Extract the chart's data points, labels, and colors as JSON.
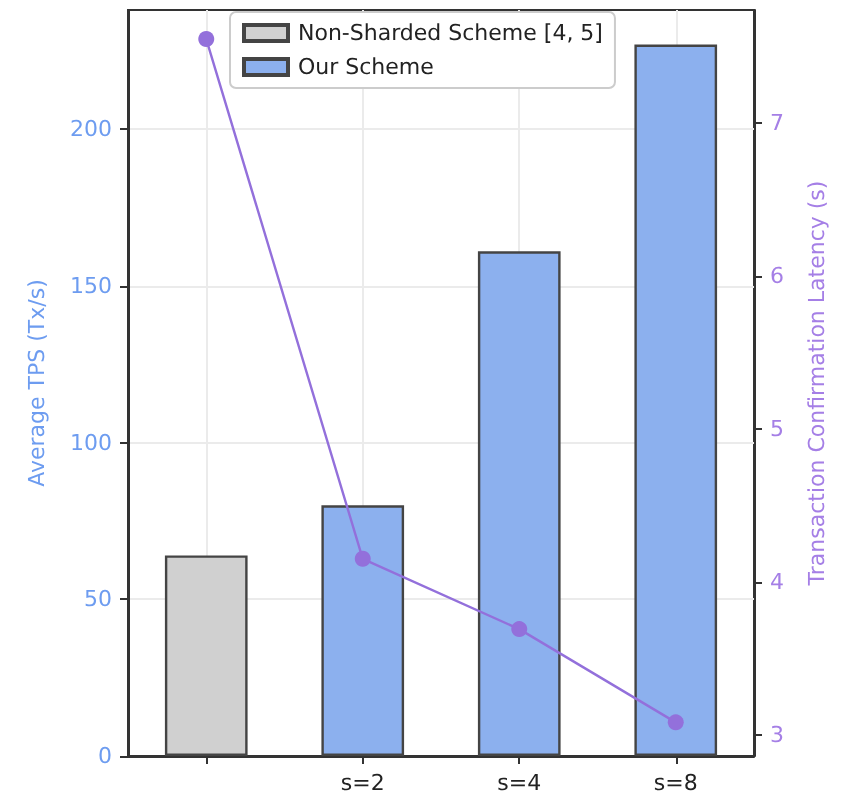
{
  "chart_data": {
    "type": "bar",
    "categories": [
      null,
      "s=2",
      "s=4",
      "s=8"
    ],
    "series": [
      {
        "name": "Non-Sharded Scheme [4, 5]",
        "color": "#d0d0d0",
        "values": [
          64,
          null,
          null,
          null
        ]
      },
      {
        "name": "Our Scheme",
        "color": "#8cb0ee",
        "values": [
          null,
          80,
          161,
          227
        ]
      },
      {
        "type": "line",
        "axis": "y2",
        "color": "#9370db",
        "values": [
          7.55,
          4.15,
          3.69,
          3.08
        ]
      }
    ],
    "ylabel": "Average TPS (Tx/s)",
    "y2label": "Transaction Confirmation Latency (s)",
    "ylim": [
      0,
      238
    ],
    "yticks": [
      0,
      50,
      100,
      150,
      200
    ],
    "y2lim": [
      2.86,
      7.74
    ],
    "y2ticks": [
      3,
      4,
      5,
      6,
      7
    ],
    "grid": true,
    "legend": "top left",
    "marker": "circle"
  }
}
